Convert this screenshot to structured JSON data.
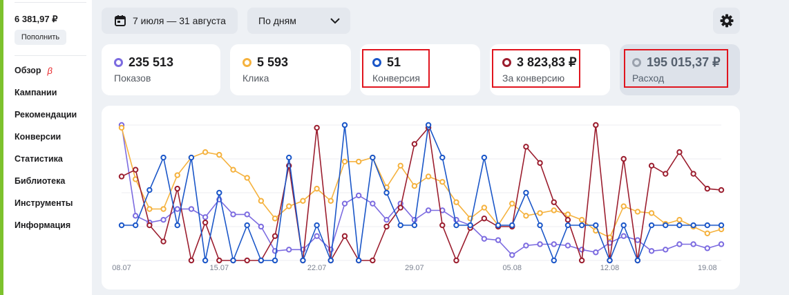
{
  "sidebar": {
    "balance": "6 381,97 ₽",
    "topup_label": "Пополнить",
    "beta_mark": "β",
    "items": [
      {
        "label": "Обзор"
      },
      {
        "label": "Кампании"
      },
      {
        "label": "Рекомендации"
      },
      {
        "label": "Конверсии"
      },
      {
        "label": "Статистика"
      },
      {
        "label": "Библиотека"
      },
      {
        "label": "Инструменты"
      },
      {
        "label": "Информация"
      }
    ]
  },
  "toolbar": {
    "date_range": "7 июля — 31 августа",
    "date_icon": "calendar-icon",
    "grouping": "По дням",
    "grouping_icon": "chevron-down-icon",
    "settings_icon": "gear-icon"
  },
  "metrics": [
    {
      "value": "235 513",
      "label": "Показов",
      "color": "#7c6be0",
      "highlighted": false,
      "selected": false
    },
    {
      "value": "5 593",
      "label": "Клика",
      "color": "#f5b23e",
      "highlighted": false,
      "selected": false
    },
    {
      "value": "51",
      "label": "Конверсия",
      "color": "#1a56c8",
      "highlighted": true,
      "selected": false
    },
    {
      "value": "3 823,83 ₽",
      "label": "За конверсию",
      "color": "#9b1d2e",
      "highlighted": true,
      "selected": false
    },
    {
      "value": "195 015,37 ₽",
      "label": "Расход",
      "color": "#9aa1ad",
      "highlighted": true,
      "selected": true
    }
  ],
  "colors": {
    "highlight_box": "#e0141e",
    "accent_strip": "#7dc22d"
  },
  "chart_data": {
    "type": "line",
    "x_tick_labels": [
      "08.07",
      "15.07",
      "22.07",
      "29.07",
      "05.08",
      "12.08",
      "19.08"
    ],
    "points_per_series": 44,
    "normalized_scale": true,
    "ylim": [
      0,
      1
    ],
    "grid": true,
    "series": [
      {
        "color": "#7c6be0",
        "values": [
          1.0,
          0.33,
          0.28,
          0.3,
          0.38,
          0.38,
          0.32,
          0.45,
          0.34,
          0.34,
          0.25,
          0.07,
          0.08,
          0.08,
          0.18,
          0.08,
          0.42,
          0.48,
          0.42,
          0.3,
          0.42,
          0.3,
          0.37,
          0.37,
          0.3,
          0.26,
          0.16,
          0.15,
          0.04,
          0.11,
          0.12,
          0.12,
          0.11,
          0.08,
          0.06,
          0.13,
          0.18,
          0.15,
          0.07,
          0.08,
          0.12,
          0.12,
          0.09,
          0.12
        ]
      },
      {
        "color": "#f5b23e",
        "values": [
          0.98,
          0.6,
          0.38,
          0.38,
          0.63,
          0.76,
          0.8,
          0.78,
          0.67,
          0.61,
          0.44,
          0.31,
          0.4,
          0.44,
          0.53,
          0.44,
          0.73,
          0.73,
          0.76,
          0.54,
          0.7,
          0.55,
          0.62,
          0.58,
          0.43,
          0.31,
          0.39,
          0.26,
          0.42,
          0.33,
          0.35,
          0.37,
          0.34,
          0.3,
          0.22,
          0.17,
          0.4,
          0.36,
          0.35,
          0.27,
          0.3,
          0.25,
          0.2,
          0.23
        ]
      },
      {
        "color": "#9b1d2e",
        "values": [
          0.62,
          0.67,
          0.26,
          0.14,
          0.53,
          0.0,
          0.28,
          0.0,
          0.0,
          0.0,
          0.0,
          0.18,
          0.7,
          0.0,
          0.98,
          0.0,
          0.18,
          0.0,
          0.0,
          0.25,
          0.39,
          0.86,
          0.98,
          0.26,
          0.0,
          0.24,
          0.31,
          0.25,
          0.25,
          0.84,
          0.72,
          0.43,
          0.3,
          0.0,
          1.0,
          0.0,
          0.75,
          0.0,
          0.7,
          0.64,
          0.8,
          0.64,
          0.53,
          0.52
        ]
      },
      {
        "color": "#1a56c8",
        "values": [
          0.26,
          0.26,
          0.52,
          0.76,
          0.26,
          0.76,
          0.0,
          0.5,
          0.0,
          0.26,
          0.0,
          0.0,
          0.76,
          0.0,
          0.26,
          0.0,
          1.0,
          0.0,
          0.76,
          0.5,
          0.26,
          0.26,
          1.0,
          0.76,
          0.26,
          0.26,
          0.76,
          0.26,
          0.26,
          0.5,
          0.26,
          0.0,
          0.26,
          0.26,
          0.26,
          0.0,
          0.26,
          0.0,
          0.26,
          0.26,
          0.26,
          0.26,
          0.26,
          0.26
        ]
      }
    ]
  }
}
